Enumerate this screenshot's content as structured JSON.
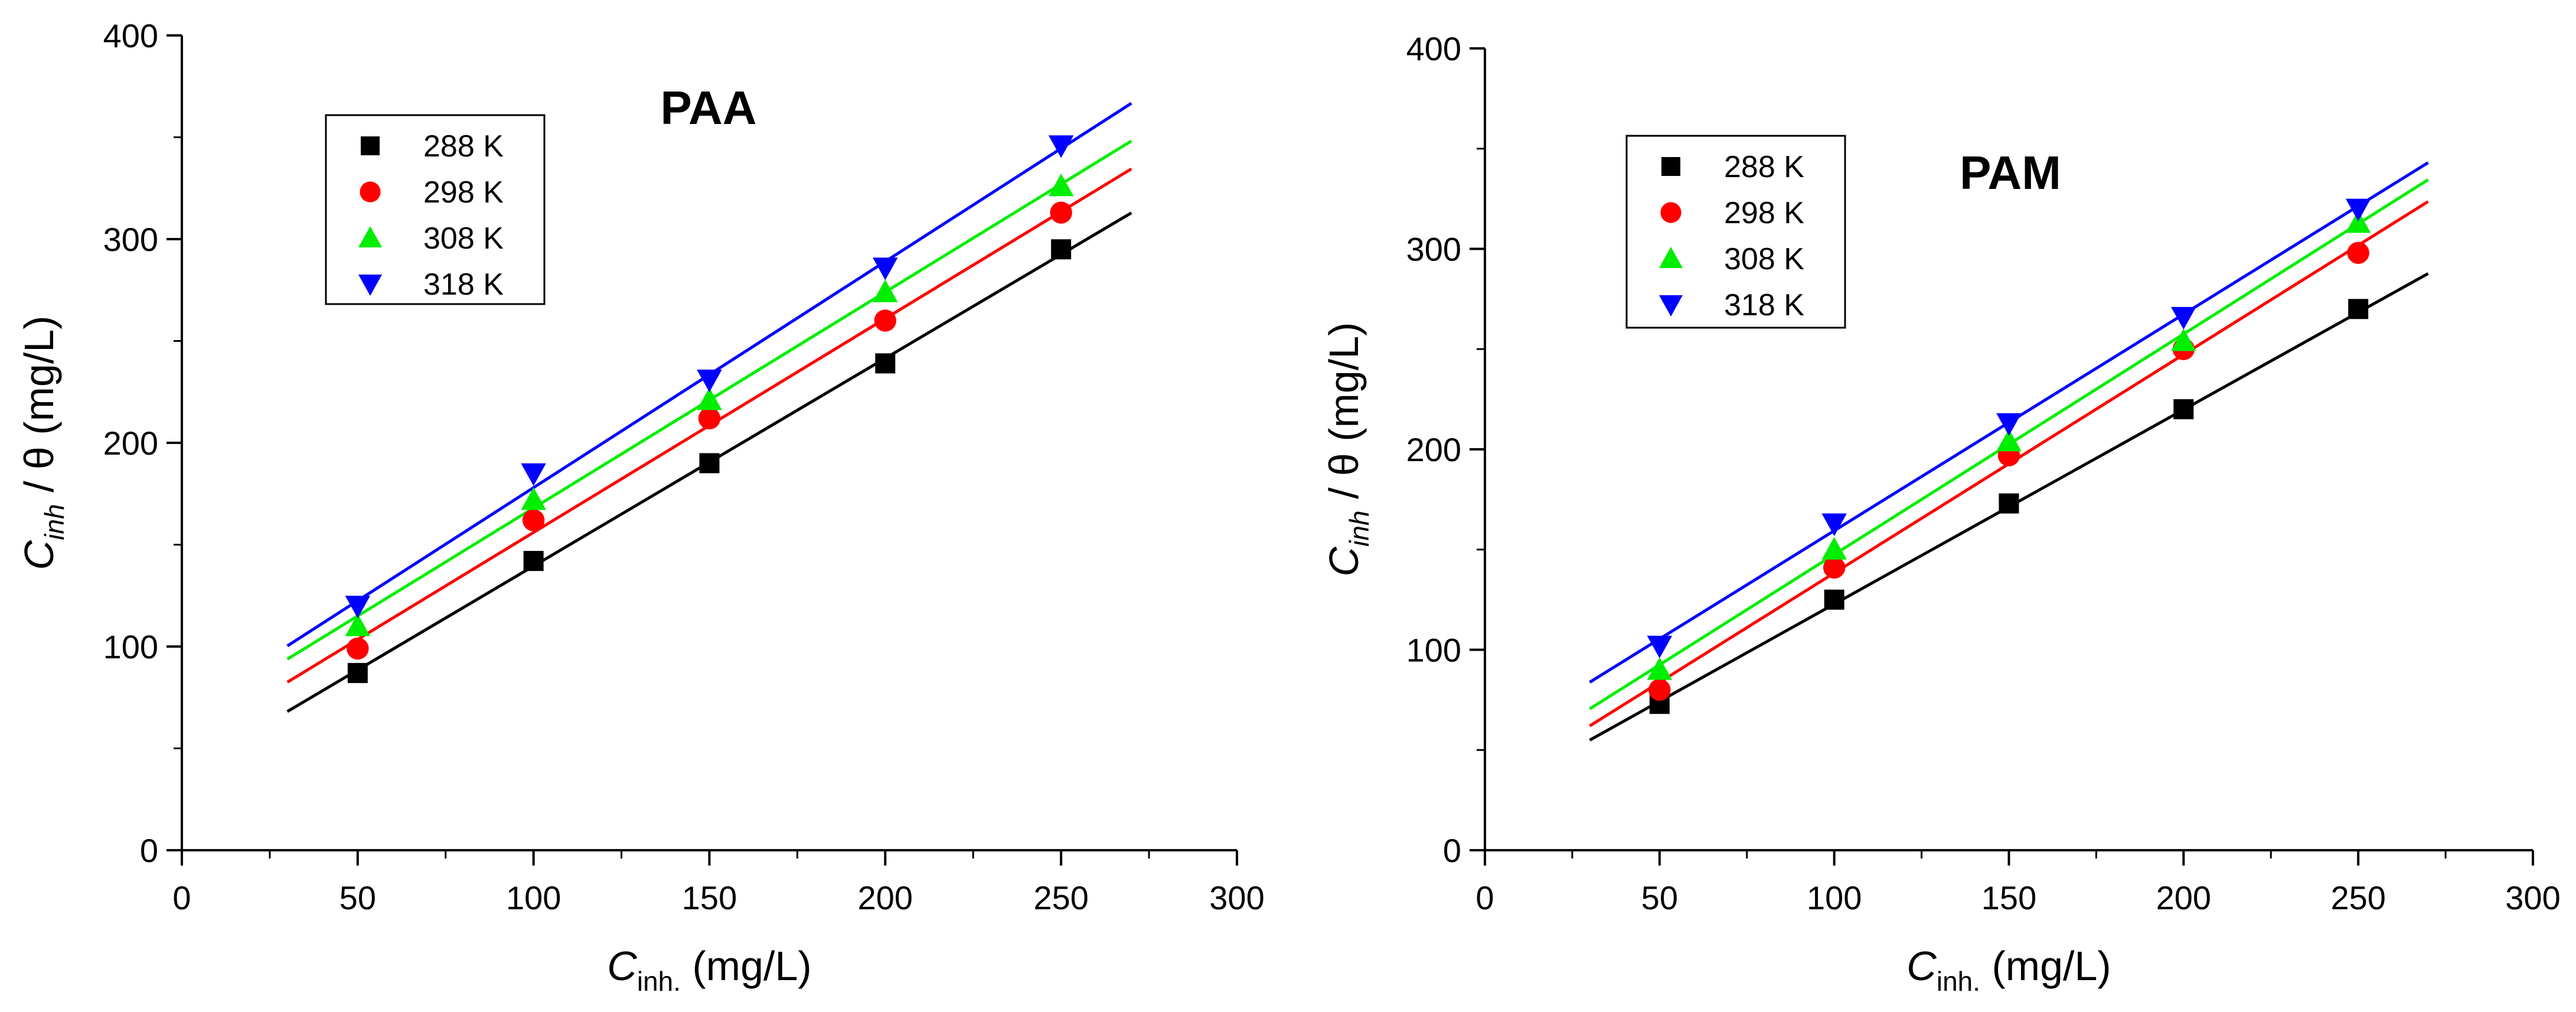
{
  "chart_data": [
    {
      "type": "scatter",
      "panel_title": "PAA",
      "xlabel": {
        "main": "C",
        "sub": "inh.",
        "unit": " (mg/L)"
      },
      "ylabel": {
        "main": "C",
        "sub": "inh",
        "unit": " / θ (mg/L)"
      },
      "xlim": [
        0,
        300
      ],
      "ylim": [
        0,
        400
      ],
      "xticks": [
        0,
        50,
        100,
        150,
        200,
        250,
        300
      ],
      "yticks": [
        0,
        100,
        200,
        300,
        400
      ],
      "xtick_labels": [
        "0",
        "50",
        "100",
        "150",
        "200",
        "250",
        "300"
      ],
      "ytick_labels": [
        "0",
        "100",
        "200",
        "300",
        "400"
      ],
      "fit_range": [
        30,
        270
      ],
      "legend_position": "top-left",
      "series": [
        {
          "name": "288 K",
          "marker": "square",
          "color": "#000000",
          "x": [
            50,
            100,
            150,
            200,
            250
          ],
          "y": [
            87,
            142,
            190,
            239,
            295
          ],
          "fit": {
            "slope": 1.02,
            "intercept": 37.5
          }
        },
        {
          "name": "298 K",
          "marker": "circle",
          "color": "#ff0000",
          "x": [
            50,
            100,
            150,
            200,
            250
          ],
          "y": [
            99,
            162,
            212,
            260,
            313
          ],
          "fit": {
            "slope": 1.05,
            "intercept": 51
          }
        },
        {
          "name": "308 K",
          "marker": "triangle-up",
          "color": "#00ee00",
          "x": [
            50,
            100,
            150,
            200,
            250
          ],
          "y": [
            110,
            172,
            221,
            274,
            326
          ],
          "fit": {
            "slope": 1.06,
            "intercept": 62
          }
        },
        {
          "name": "318 K",
          "marker": "triangle-down",
          "color": "#0000ff",
          "x": [
            50,
            100,
            150,
            200,
            250
          ],
          "y": [
            120,
            185,
            231,
            286,
            346
          ],
          "fit": {
            "slope": 1.11,
            "intercept": 67
          }
        }
      ]
    },
    {
      "type": "scatter",
      "panel_title": "PAM",
      "xlabel": {
        "main": "C",
        "sub": "inh.",
        "unit": " (mg/L)"
      },
      "ylabel": {
        "main": "C",
        "sub": "inh",
        "unit": " / θ (mg/L)"
      },
      "xlim": [
        0,
        300
      ],
      "ylim": [
        0,
        400
      ],
      "xticks": [
        0,
        50,
        100,
        150,
        200,
        250,
        300
      ],
      "yticks": [
        0,
        100,
        200,
        300,
        400
      ],
      "xtick_labels": [
        "0",
        "50",
        "100",
        "150",
        "200",
        "250",
        "300"
      ],
      "ytick_labels": [
        "0",
        "100",
        "200",
        "300",
        "400"
      ],
      "fit_range": [
        30,
        270
      ],
      "legend_position": "top-left",
      "series": [
        {
          "name": "288 K",
          "marker": "square",
          "color": "#000000",
          "x": [
            50,
            100,
            150,
            200,
            250
          ],
          "y": [
            73,
            125,
            173,
            220,
            270
          ],
          "fit": {
            "slope": 0.97,
            "intercept": 25.8
          }
        },
        {
          "name": "298 K",
          "marker": "circle",
          "color": "#ff0000",
          "x": [
            50,
            100,
            150,
            200,
            250
          ],
          "y": [
            80,
            141,
            197,
            250,
            298
          ],
          "fit": {
            "slope": 1.09,
            "intercept": 29.3
          }
        },
        {
          "name": "308 K",
          "marker": "triangle-up",
          "color": "#00ee00",
          "x": [
            50,
            100,
            150,
            200,
            250
          ],
          "y": [
            90,
            150,
            204,
            254,
            313
          ],
          "fit": {
            "slope": 1.1,
            "intercept": 37.5
          }
        },
        {
          "name": "318 K",
          "marker": "triangle-down",
          "color": "#0000ff",
          "x": [
            50,
            100,
            150,
            200,
            250
          ],
          "y": [
            102,
            163,
            213,
            266,
            320
          ],
          "fit": {
            "slope": 1.08,
            "intercept": 51.4
          }
        }
      ]
    }
  ]
}
